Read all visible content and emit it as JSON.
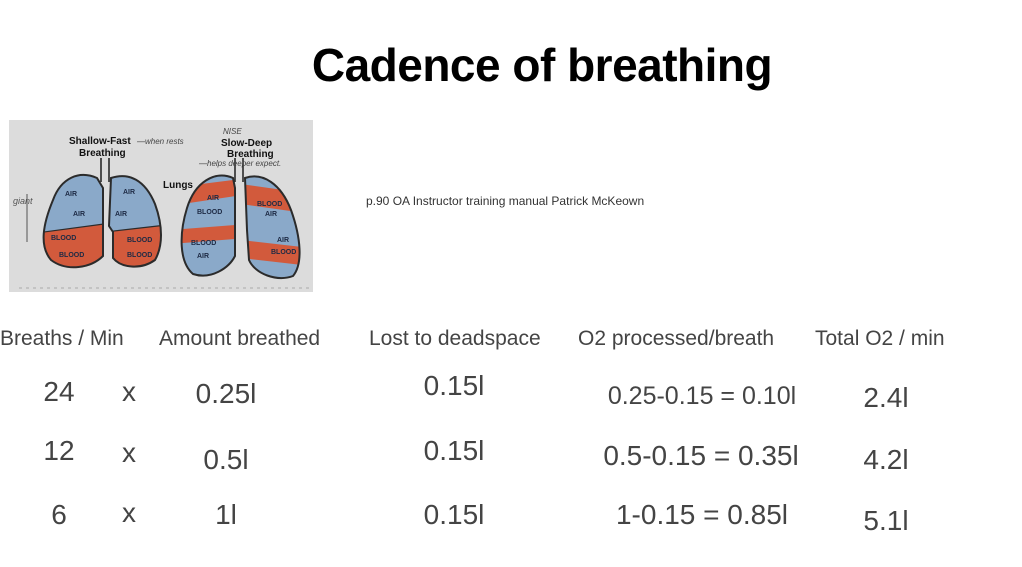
{
  "slide": {
    "title": "Cadence of breathing",
    "source": "p.90 OA Instructor training manual Patrick McKeown"
  },
  "figure": {
    "left_heading_line1": "Shallow-Fast",
    "left_heading_line2": "Breathing",
    "left_handwritten_note": "—when rests",
    "center_label": "Lungs",
    "right_handwritten_top": "NISE",
    "right_heading_line1": "Slow-Deep",
    "right_heading_line2": "Breathing",
    "right_handwritten_note": "—helps deeper expect.",
    "margin_handwritten": "giant",
    "left_lung_left_labels": [
      "AIR",
      "AIR",
      "BLOOD",
      "BLOOD"
    ],
    "left_lung_right_labels": [
      "AIR",
      "AIR",
      "BLOOD",
      "BLOOD"
    ],
    "right_lung_left_labels": [
      "AIR",
      "BLOOD",
      "BLOOD",
      "AIR"
    ],
    "right_lung_right_labels": [
      "BLOOD",
      "AIR",
      "AIR",
      "BLOOD"
    ],
    "colors": {
      "air": "#8aa9c9",
      "blood": "#d25a3c",
      "paper": "#dcdcdc"
    }
  },
  "table": {
    "headers": {
      "breaths": "Breaths / Min",
      "amount": "Amount breathed",
      "lost": "Lost to deadspace",
      "processed": "O2 processed/breath",
      "total": "Total O2 / min"
    },
    "rows": [
      {
        "breaths": "24",
        "times": "x",
        "amount": "0.25l",
        "lost": "0.15l",
        "processed": "0.25-0.15 = 0.10l",
        "total": "2.4l"
      },
      {
        "breaths": "12",
        "times": "x",
        "amount": "0.5l",
        "lost": "0.15l",
        "processed": "0.5-0.15 = 0.35l",
        "total": "4.2l"
      },
      {
        "breaths": "6",
        "times": "x",
        "amount": "1l",
        "lost": "0.15l",
        "processed": "1-0.15 = 0.85l",
        "total": "5.1l"
      }
    ]
  }
}
